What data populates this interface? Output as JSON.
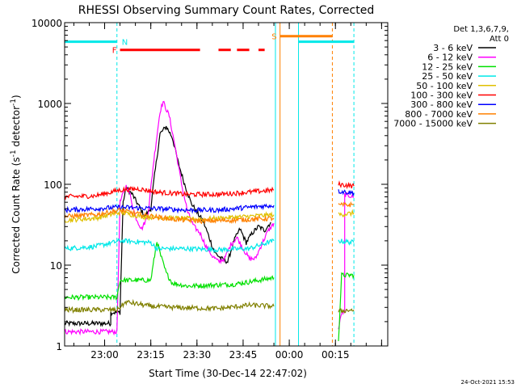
{
  "chart_data": {
    "type": "line",
    "title": "RHESSI Observing Summary Count Rates, Corrected",
    "xlabel": "Start Time (30-Dec-14 22:47:02)",
    "ylabel": "Corrected Count Rate (s^-1 detector^-1)",
    "ylabel_main": "Corrected Count Rate (s",
    "ylabel_sup1": "-1",
    "ylabel_mid": " detector",
    "ylabel_sup2": "-1",
    "ylabel_end": ")",
    "y_scale": "log",
    "ylim": [
      1,
      10000
    ],
    "y_ticks": [
      1,
      10,
      100,
      1000,
      10000
    ],
    "y_tick_labels": [
      "1",
      "10",
      "100",
      "1000",
      "10000"
    ],
    "x_unit": "minutes after 22:47:02",
    "xlim": [
      0,
      105
    ],
    "x_ticks": [
      13,
      28,
      43,
      58,
      73,
      88,
      103
    ],
    "x_tick_labels": [
      "23:00",
      "23:15",
      "23:30",
      "23:45",
      "00:00",
      "00:15",
      ""
    ],
    "legend": {
      "placement": "outside-right",
      "header_line1": "Det 1,3,6,7,9,",
      "header_line2": "Att 0",
      "entries": [
        {
          "label": "3 - 6 keV",
          "color": "#000000"
        },
        {
          "label": "6 - 12 keV",
          "color": "#ff00ff"
        },
        {
          "label": "12 - 25 keV",
          "color": "#00e000"
        },
        {
          "label": "25 - 50 keV",
          "color": "#00e8e8"
        },
        {
          "label": "50 - 100 keV",
          "color": "#e0c000"
        },
        {
          "label": "100 - 300 keV",
          "color": "#ff0000"
        },
        {
          "label": "300 - 800 keV",
          "color": "#0000ff"
        },
        {
          "label": "800 - 7000 keV",
          "color": "#ff8000"
        },
        {
          "label": "7000 - 15000 keV",
          "color": "#808000"
        }
      ]
    },
    "series": [
      {
        "color": "#000000",
        "segments": [
          [
            [
              0,
              1.9
            ],
            [
              15,
              1.9
            ],
            [
              15,
              2.6
            ],
            [
              18,
              2.6
            ],
            [
              19,
              60
            ],
            [
              20,
              90
            ],
            [
              22,
              75
            ],
            [
              24,
              55
            ],
            [
              26,
              40
            ],
            [
              28,
              50
            ],
            [
              29,
              110
            ],
            [
              31,
              420
            ],
            [
              33,
              520
            ],
            [
              35,
              380
            ],
            [
              37,
              180
            ],
            [
              39,
              100
            ],
            [
              41,
              60
            ],
            [
              43,
              45
            ],
            [
              45,
              35
            ],
            [
              47,
              22
            ],
            [
              48,
              17
            ],
            [
              49,
              14
            ],
            [
              51,
              12
            ],
            [
              53,
              11
            ],
            [
              55,
              20
            ],
            [
              57,
              28
            ],
            [
              59,
              19
            ],
            [
              61,
              25
            ],
            [
              63,
              30
            ],
            [
              65,
              27
            ],
            [
              67,
              34
            ]
          ]
        ]
      },
      {
        "color": "#ff00ff",
        "segments": [
          [
            [
              0,
              1.5
            ],
            [
              17,
              1.5
            ],
            [
              18,
              60
            ],
            [
              20,
              95
            ],
            [
              21,
              80
            ],
            [
              23,
              40
            ],
            [
              25,
              28
            ],
            [
              27,
              40
            ],
            [
              29,
              200
            ],
            [
              31,
              800
            ],
            [
              32,
              1050
            ],
            [
              34,
              700
            ],
            [
              36,
              280
            ],
            [
              38,
              100
            ],
            [
              40,
              45
            ],
            [
              42,
              30
            ],
            [
              44,
              25
            ],
            [
              46,
              17
            ],
            [
              48,
              13
            ],
            [
              50,
              11
            ],
            [
              52,
              12
            ],
            [
              54,
              18
            ],
            [
              56,
              22
            ],
            [
              58,
              16
            ],
            [
              60,
              12
            ],
            [
              62,
              12
            ],
            [
              64,
              18
            ],
            [
              66,
              26
            ],
            [
              68,
              33
            ]
          ],
          [
            [
              89,
              1.6
            ],
            [
              90,
              2.6
            ],
            [
              91,
              2.6
            ],
            [
              91,
              75
            ],
            [
              94,
              70
            ]
          ]
        ]
      },
      {
        "color": "#00e000",
        "segments": [
          [
            [
              0,
              4
            ],
            [
              17,
              4
            ],
            [
              18,
              6.5
            ],
            [
              28,
              6.5
            ],
            [
              30,
              20
            ],
            [
              31,
              14
            ],
            [
              33,
              8
            ],
            [
              35,
              6
            ],
            [
              40,
              5.5
            ],
            [
              55,
              5.8
            ],
            [
              60,
              6.2
            ],
            [
              68,
              7
            ]
          ],
          [
            [
              89,
              1.2
            ],
            [
              90,
              7.5
            ],
            [
              94,
              7.5
            ]
          ]
        ]
      },
      {
        "color": "#00e8e8",
        "segments": [
          [
            [
              0,
              16
            ],
            [
              10,
              17
            ],
            [
              18,
              20
            ],
            [
              28,
              19
            ],
            [
              30,
              16
            ],
            [
              40,
              16
            ],
            [
              50,
              15.5
            ],
            [
              60,
              16
            ],
            [
              64,
              18
            ],
            [
              68,
              20
            ]
          ],
          [
            [
              89,
              20
            ],
            [
              94,
              19
            ]
          ]
        ],
        "markers": [
          {
            "x": 0,
            "y": 5800
          },
          {
            "x": 17,
            "y": 5800
          },
          {
            "x": 76,
            "y": 5800
          },
          {
            "x": 94,
            "y": 5800
          }
        ],
        "marker_label": "N"
      },
      {
        "color": "#e0c000",
        "segments": [
          [
            [
              0,
              36
            ],
            [
              10,
              38
            ],
            [
              18,
              45
            ],
            [
              25,
              40
            ],
            [
              35,
              38
            ],
            [
              45,
              37
            ],
            [
              55,
              39
            ],
            [
              68,
              42
            ]
          ],
          [
            [
              89,
              42
            ],
            [
              94,
              44
            ]
          ]
        ]
      },
      {
        "color": "#ff0000",
        "segments": [
          [
            [
              0,
              70
            ],
            [
              10,
              72
            ],
            [
              18,
              85
            ],
            [
              24,
              88
            ],
            [
              30,
              80
            ],
            [
              40,
              75
            ],
            [
              50,
              75
            ],
            [
              60,
              80
            ],
            [
              68,
              85
            ]
          ],
          [
            [
              89,
              100
            ],
            [
              94,
              95
            ]
          ]
        ],
        "markers": [
          {
            "x": 18,
            "y": 4600
          },
          {
            "x": 44,
            "y": 4600
          },
          {
            "x": 50,
            "y": 4600
          },
          {
            "x": 54,
            "y": 4600
          },
          {
            "x": 56,
            "y": 4600
          },
          {
            "x": 60,
            "y": 4600
          },
          {
            "x": 63,
            "y": 4600
          },
          {
            "x": 65,
            "y": 4600
          }
        ],
        "marker_label": "F"
      },
      {
        "color": "#0000ff",
        "segments": [
          [
            [
              0,
              48
            ],
            [
              10,
              50
            ],
            [
              18,
              52
            ],
            [
              30,
              50
            ],
            [
              40,
              48
            ],
            [
              50,
              48
            ],
            [
              60,
              52
            ],
            [
              68,
              55
            ]
          ],
          [
            [
              89,
              82
            ],
            [
              94,
              78
            ]
          ]
        ]
      },
      {
        "color": "#ff8000",
        "segments": [
          [
            [
              0,
              40
            ],
            [
              10,
              42
            ],
            [
              18,
              48
            ],
            [
              25,
              42
            ],
            [
              35,
              37
            ],
            [
              45,
              35
            ],
            [
              55,
              36
            ],
            [
              68,
              38
            ]
          ],
          [
            [
              89,
              55
            ],
            [
              94,
              56
            ]
          ]
        ],
        "markers": [
          {
            "x": 70,
            "y": 6800
          },
          {
            "x": 87,
            "y": 6800
          }
        ],
        "marker_label": "S"
      },
      {
        "color": "#808000",
        "segments": [
          [
            [
              0,
              2.8
            ],
            [
              10,
              2.8
            ],
            [
              17,
              2.8
            ],
            [
              20,
              3.5
            ],
            [
              28,
              3.1
            ],
            [
              35,
              3.0
            ],
            [
              50,
              2.9
            ],
            [
              60,
              3.2
            ],
            [
              68,
              3.1
            ]
          ],
          [
            [
              89,
              2.7
            ],
            [
              94,
              2.8
            ]
          ]
        ]
      }
    ],
    "v_lines": [
      {
        "x": 17,
        "color": "#00e8e8",
        "dashed": true
      },
      {
        "x": 68.5,
        "color": "#00e8e8",
        "dashed": false
      },
      {
        "x": 70,
        "color": "#ff8000",
        "dashed": false
      },
      {
        "x": 76,
        "color": "#00e8e8",
        "dashed": false
      },
      {
        "x": 87,
        "color": "#ff8000",
        "dashed": true
      },
      {
        "x": 94,
        "color": "#00e8e8",
        "dashed": true
      }
    ],
    "timestamp": "24-Oct-2021 15:53"
  }
}
